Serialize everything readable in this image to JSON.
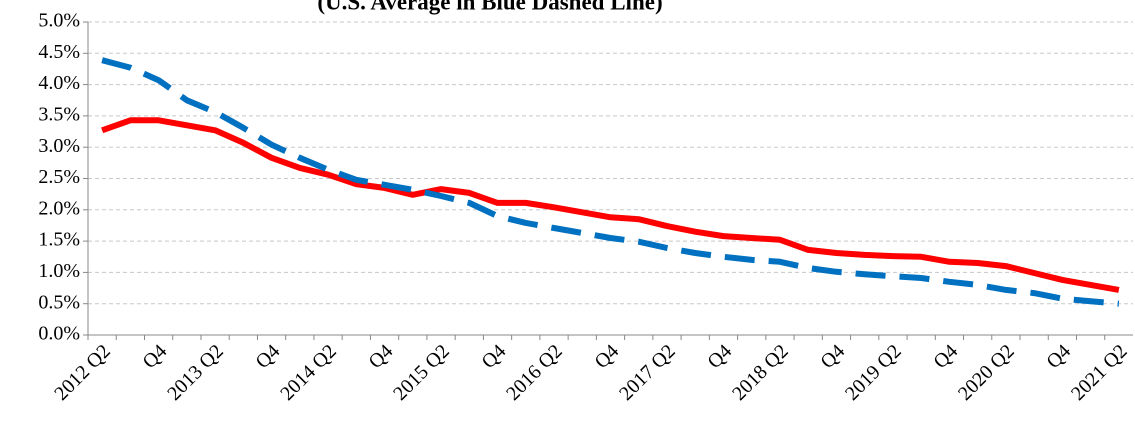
{
  "chart_data": {
    "type": "line",
    "title": "(U.S. Average in Blue Dashed Line)",
    "categories": [
      "2012 Q2",
      null,
      "Q4",
      null,
      "2013 Q2",
      null,
      "Q4",
      null,
      "2014 Q2",
      null,
      "Q4",
      null,
      "2015 Q2",
      null,
      "Q4",
      null,
      "2016 Q2",
      null,
      "Q4",
      null,
      "2017 Q2",
      null,
      "Q4",
      null,
      "2018 Q2",
      null,
      "Q4",
      null,
      "2019 Q2",
      null,
      "Q4",
      null,
      "2020 Q2",
      null,
      "Q4",
      null,
      "2021 Q2"
    ],
    "series": [
      {
        "color": "#ff0000",
        "dashed": false,
        "values": [
          3.27,
          3.43,
          3.43,
          3.35,
          3.27,
          3.07,
          2.83,
          2.67,
          2.56,
          2.41,
          2.35,
          2.24,
          2.33,
          2.27,
          2.11,
          2.11,
          2.04,
          1.96,
          1.88,
          1.85,
          1.74,
          1.65,
          1.58,
          1.55,
          1.52,
          1.36,
          1.31,
          1.28,
          1.26,
          1.25,
          1.17,
          1.15,
          1.1,
          0.99,
          0.88,
          0.8,
          0.72
        ]
      },
      {
        "color": "#0070c0",
        "dashed": true,
        "values": [
          4.39,
          4.27,
          4.07,
          3.75,
          3.56,
          3.31,
          3.04,
          2.83,
          2.64,
          2.48,
          2.4,
          2.32,
          2.22,
          2.11,
          1.9,
          1.79,
          1.71,
          1.63,
          1.55,
          1.49,
          1.39,
          1.31,
          1.25,
          1.2,
          1.17,
          1.07,
          1.01,
          0.97,
          0.94,
          0.91,
          0.85,
          0.8,
          0.72,
          0.67,
          0.58,
          0.54,
          0.5
        ]
      }
    ],
    "ylim": [
      0,
      5
    ],
    "yticks": [
      {
        "value": 0,
        "label": "0.0%"
      },
      {
        "value": 0.5,
        "label": "0.5%"
      },
      {
        "value": 1,
        "label": "1.0%"
      },
      {
        "value": 1.5,
        "label": "1.5%"
      },
      {
        "value": 2,
        "label": "2.0%"
      },
      {
        "value": 2.5,
        "label": "2.5%"
      },
      {
        "value": 3,
        "label": "3.0%"
      },
      {
        "value": 3.5,
        "label": "3.5%"
      },
      {
        "value": 4,
        "label": "4.0%"
      },
      {
        "value": 4.5,
        "label": "4.5%"
      },
      {
        "value": 5,
        "label": "5.0%"
      }
    ],
    "grid": true
  }
}
